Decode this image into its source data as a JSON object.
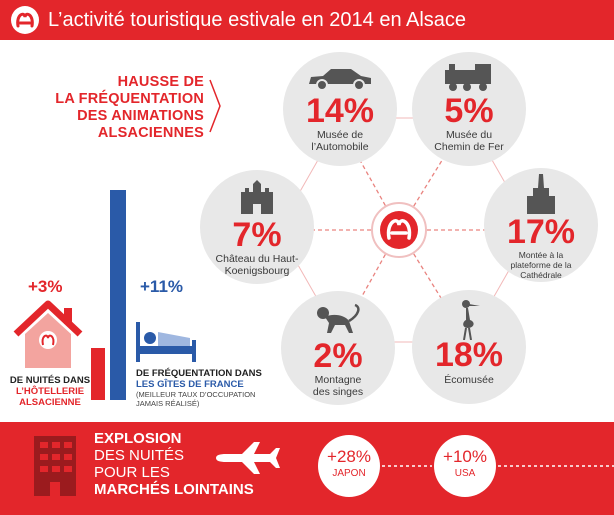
{
  "header": {
    "title": "L’activité touristique estivale en 2014 en Alsace"
  },
  "hausse": {
    "lines": [
      "HAUSSE DE",
      "LA FRÉQUENTATION",
      "DES ANIMATIONS",
      "ALSACIENNES"
    ]
  },
  "attractions": [
    {
      "pct": "14%",
      "label1": "Musée de",
      "label2": "l’Automobile",
      "icon": "car-icon"
    },
    {
      "pct": "5%",
      "label1": "Musée du",
      "label2": "Chemin de Fer",
      "icon": "train-icon"
    },
    {
      "pct": "17%",
      "label1": "Montée à la",
      "label2": "plateforme de la",
      "label3": "Cathédrale",
      "icon": "cathedral-icon"
    },
    {
      "pct": "18%",
      "label1": "Écomusée",
      "icon": "stork-icon"
    },
    {
      "pct": "2%",
      "label1": "Montagne",
      "label2": "des singes",
      "icon": "monkey-icon"
    },
    {
      "pct": "7%",
      "label1": "Château du Haut-",
      "label2": "Koenigsbourg",
      "icon": "castle-icon"
    }
  ],
  "hotel": {
    "stat": "+3%",
    "caption1": "DE NUITÉS DANS",
    "caption2": "L’HÔTELLERIE",
    "caption3": "ALSACIENNE",
    "level": 0.25
  },
  "gites": {
    "stat": "+11%",
    "caption1": "DE FRÉQUENTATION DANS",
    "caption2": "LES GÎTES DE FRANCE",
    "note1": "(MEILLEUR TAUX D’OCCUPATION",
    "note2": "JAMAIS RÉALISÉ)",
    "level": 1.0
  },
  "footer": {
    "lines": [
      "EXPLOSION",
      "DES NUITÉS",
      "POUR LES",
      "MARCHÉS LOINTAINS"
    ],
    "markets": [
      {
        "value": "+28%",
        "country": "JAPON"
      },
      {
        "value": "+10%",
        "country": "USA"
      }
    ]
  },
  "colors": {
    "red": "#e3262b",
    "blue": "#2a5aa8",
    "grey": "#e8e8e8"
  }
}
